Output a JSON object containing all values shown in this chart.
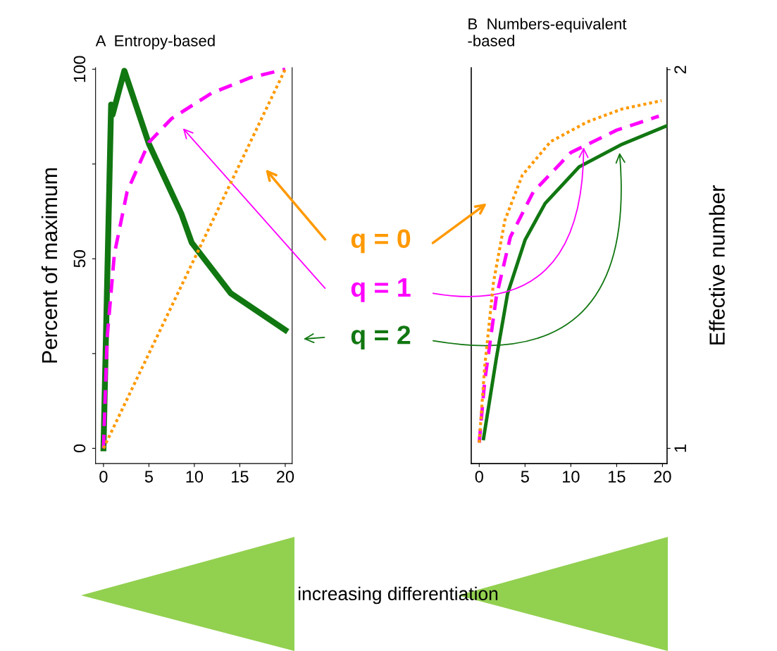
{
  "chart_data": [
    {
      "type": "line",
      "title": "A  Entropy-based",
      "ylabel": "Percent of maximum",
      "xlim": [
        -0.87,
        20.76
      ],
      "ylim": [
        -4,
        100.4
      ],
      "xticks": [
        0,
        5,
        10,
        15,
        20
      ],
      "yticks": [
        0,
        {
          "value": 25,
          "label": null
        },
        50,
        {
          "value": 75,
          "label": null
        },
        100
      ],
      "grid": false,
      "legend": "right",
      "annotations": [
        "increasing differentiation"
      ],
      "series": [
        {
          "name": "q = 0",
          "color": "#ff9900",
          "line_style": "dotted",
          "x": [
            0,
            20
          ],
          "values": [
            0,
            100
          ]
        },
        {
          "name": "q = 1",
          "color": "#ff00ff",
          "line_style": "dashed",
          "x": [
            0,
            0.4,
            1.2,
            2.6,
            5,
            7.5,
            11.9,
            16.2,
            20
          ],
          "values": [
            0,
            29,
            51.3,
            67.7,
            80.7,
            87,
            93.7,
            97.8,
            100
          ]
        },
        {
          "name": "q = 2",
          "color": "#117711",
          "line_style": "solid",
          "x": [
            0,
            0.84,
            1.0,
            2.3,
            5.0,
            8.6,
            9.7,
            14.0,
            20
          ],
          "values": [
            0,
            90.7,
            88,
            99.6,
            80.3,
            61.7,
            54.3,
            40.9,
            31.2
          ]
        }
      ]
    },
    {
      "type": "line",
      "title": "B  Numbers-equivalent\n-based",
      "y2label": "Effective number",
      "xlim": [
        -0.87,
        20.5
      ],
      "y2lim": [
        0.96,
        2.005
      ],
      "xticks": [
        0,
        5,
        10,
        15,
        20
      ],
      "y2ticks": [
        1,
        2
      ],
      "grid": false,
      "series": [
        {
          "color": "#ff9900",
          "line_style": "dotted",
          "axis": "y2",
          "x": [
            0,
            0.6,
            1.56,
            2.8,
            4.7,
            7.8,
            11.8,
            15.6,
            19.9
          ],
          "values": [
            1.015,
            1.216,
            1.439,
            1.602,
            1.721,
            1.81,
            1.862,
            1.896,
            1.918
          ]
        },
        {
          "color": "#ff00ff",
          "line_style": "dashed",
          "axis": "y2",
          "x": [
            0,
            0.6,
            1.87,
            3.4,
            5.9,
            10.0,
            15.0,
            19.6
          ],
          "values": [
            1.015,
            1.178,
            1.401,
            1.558,
            1.677,
            1.781,
            1.84,
            1.877
          ]
        },
        {
          "color": "#117711",
          "line_style": "solid",
          "axis": "y2",
          "x": [
            0.47,
            1.87,
            3.1,
            5.0,
            7.2,
            10.9,
            15.6,
            20.4
          ],
          "values": [
            1.026,
            1.238,
            1.409,
            1.55,
            1.647,
            1.743,
            1.803,
            1.851
          ]
        }
      ]
    }
  ]
}
